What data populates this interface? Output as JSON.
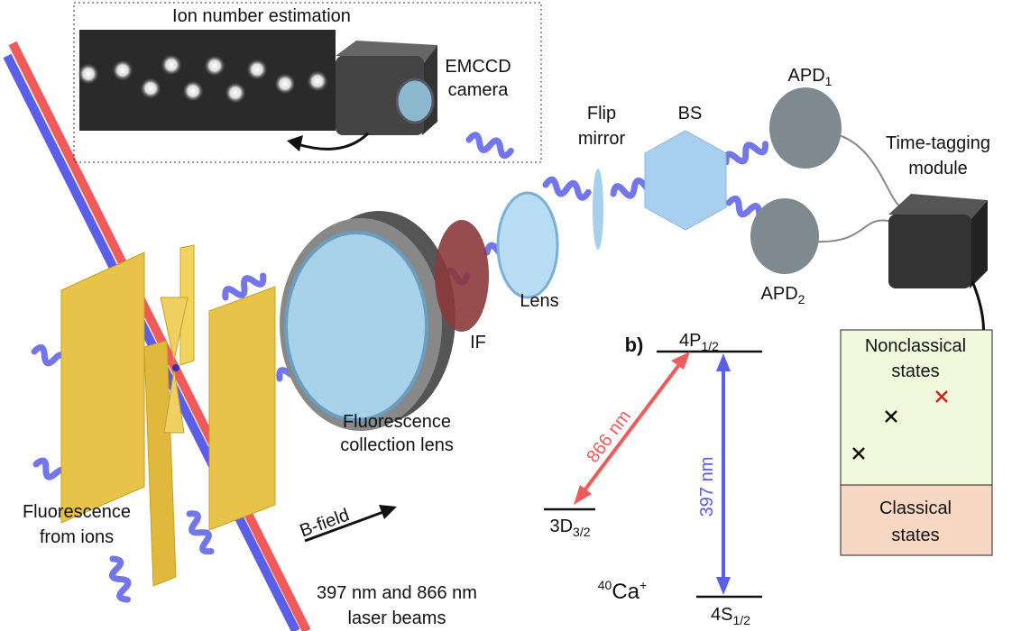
{
  "camera_inset": {
    "title": "Ion number estimation",
    "camera_label": [
      "EMCCD",
      "camera"
    ]
  },
  "components": {
    "flip_mirror": [
      "Flip",
      "mirror"
    ],
    "beam_splitter": "BS",
    "apd1": {
      "main": "APD",
      "sub": "1"
    },
    "apd2": {
      "main": "APD",
      "sub": "2"
    },
    "time_tagging": [
      "Time-tagging",
      "module"
    ],
    "lens": "Lens",
    "filter": "IF",
    "collection_lens": [
      "Fluorescence",
      "collection lens"
    ],
    "fluorescence": [
      "Fluorescence",
      "from ions"
    ],
    "b_field": "B-field",
    "laser_beams": [
      "397 nm and 866 nm",
      "laser beams"
    ]
  },
  "level_scheme": {
    "panel": "b)",
    "upper": {
      "main": "4P",
      "sub": "1/2"
    },
    "middle": {
      "main": "3D",
      "sub": "3/2"
    },
    "ground": {
      "main": "4S",
      "sub": "1/2"
    },
    "red_transition": "866 nm",
    "blue_transition": "397 nm",
    "ion": {
      "mass": "40",
      "main": "Ca",
      "charge": "+"
    }
  },
  "states_plot": {
    "nonclassical": [
      "Nonclassical",
      "states"
    ],
    "classical": [
      "Classical",
      "states"
    ]
  }
}
